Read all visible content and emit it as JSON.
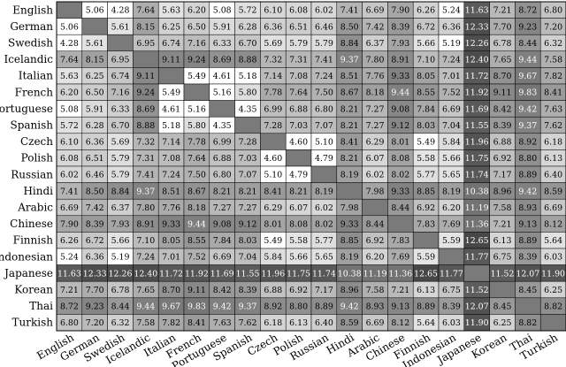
{
  "chart_data": {
    "type": "heatmap",
    "title": "",
    "xlabel": "",
    "ylabel": "",
    "rows": [
      "English",
      "German",
      "Swedish",
      "Icelandic",
      "Italian",
      "French",
      "Portuguese",
      "Spanish",
      "Czech",
      "Polish",
      "Russian",
      "Hindi",
      "Arabic",
      "Chinese",
      "Finnish",
      "Indonesian",
      "Japanese",
      "Korean",
      "Thai",
      "Turkish"
    ],
    "columns": [
      "English",
      "German",
      "Swedish",
      "Icelandic",
      "Italian",
      "French",
      "Portuguese",
      "Spanish",
      "Czech",
      "Polish",
      "Russian",
      "Hindi",
      "Arabic",
      "Chinese",
      "Finnish",
      "Indonesian",
      "Japanese",
      "Korean",
      "Thai",
      "Turkish"
    ],
    "diagonal": "empty",
    "color_scale": "light gray (low) to dark gray (high); white for lowest values",
    "values": [
      [
        null,
        5.06,
        4.28,
        7.64,
        5.63,
        6.2,
        5.08,
        5.72,
        6.1,
        6.08,
        6.02,
        7.41,
        6.69,
        7.9,
        6.26,
        5.24,
        11.63,
        7.21,
        8.72,
        6.8
      ],
      [
        5.06,
        null,
        5.61,
        8.15,
        6.25,
        6.5,
        5.91,
        6.28,
        6.36,
        6.51,
        6.46,
        8.5,
        7.42,
        8.39,
        6.72,
        6.36,
        12.33,
        7.7,
        9.23,
        7.2
      ],
      [
        4.28,
        5.61,
        null,
        6.95,
        6.74,
        7.16,
        6.33,
        6.7,
        5.69,
        5.79,
        5.79,
        8.84,
        6.37,
        7.93,
        5.66,
        5.19,
        12.26,
        6.78,
        8.44,
        6.32
      ],
      [
        7.64,
        8.15,
        6.95,
        null,
        9.11,
        9.24,
        8.69,
        8.88,
        7.32,
        7.31,
        7.41,
        9.37,
        7.8,
        8.91,
        7.1,
        7.24,
        12.4,
        7.65,
        9.44,
        7.58
      ],
      [
        5.63,
        6.25,
        6.74,
        9.11,
        null,
        5.49,
        4.61,
        5.18,
        7.14,
        7.08,
        7.24,
        8.51,
        7.76,
        9.33,
        8.05,
        7.01,
        11.72,
        8.7,
        9.67,
        7.82
      ],
      [
        6.2,
        6.5,
        7.16,
        9.24,
        5.49,
        null,
        5.16,
        5.8,
        7.78,
        7.64,
        7.5,
        8.67,
        8.18,
        9.44,
        8.55,
        7.52,
        11.92,
        9.11,
        9.83,
        8.41
      ],
      [
        5.08,
        5.91,
        6.33,
        8.69,
        4.61,
        5.16,
        null,
        4.35,
        6.99,
        6.88,
        6.8,
        8.21,
        7.27,
        9.08,
        7.84,
        6.69,
        11.69,
        8.42,
        9.42,
        7.63
      ],
      [
        5.72,
        6.28,
        6.7,
        8.88,
        5.18,
        5.8,
        4.35,
        null,
        7.28,
        7.03,
        7.07,
        8.21,
        7.27,
        9.12,
        8.03,
        7.04,
        11.55,
        8.39,
        9.37,
        7.62
      ],
      [
        6.1,
        6.36,
        5.69,
        7.32,
        7.14,
        7.78,
        6.99,
        7.28,
        null,
        4.6,
        5.1,
        8.41,
        6.29,
        8.01,
        5.49,
        5.84,
        11.96,
        6.88,
        8.92,
        6.18
      ],
      [
        6.08,
        6.51,
        5.79,
        7.31,
        7.08,
        7.64,
        6.88,
        7.03,
        4.6,
        null,
        4.79,
        8.21,
        6.07,
        8.08,
        5.58,
        5.66,
        11.75,
        6.92,
        8.8,
        6.13
      ],
      [
        6.02,
        6.46,
        5.79,
        7.41,
        7.24,
        7.5,
        6.8,
        7.07,
        5.1,
        4.79,
        null,
        8.19,
        6.02,
        8.02,
        5.77,
        5.65,
        11.74,
        7.17,
        8.89,
        6.4
      ],
      [
        7.41,
        8.5,
        8.84,
        9.37,
        8.51,
        8.67,
        8.21,
        8.21,
        8.41,
        8.21,
        8.19,
        null,
        7.98,
        9.33,
        8.85,
        8.19,
        10.38,
        8.96,
        9.42,
        8.59
      ],
      [
        6.69,
        7.42,
        6.37,
        7.8,
        7.76,
        8.18,
        7.27,
        7.27,
        6.29,
        6.07,
        6.02,
        7.98,
        null,
        8.44,
        6.92,
        6.2,
        11.19,
        7.58,
        8.93,
        6.69
      ],
      [
        7.9,
        8.39,
        7.93,
        8.91,
        9.33,
        9.44,
        9.08,
        9.12,
        8.01,
        8.08,
        8.02,
        9.33,
        8.44,
        null,
        7.83,
        7.69,
        11.36,
        7.21,
        9.13,
        8.12
      ],
      [
        6.26,
        6.72,
        5.66,
        7.1,
        8.05,
        8.55,
        7.84,
        8.03,
        5.49,
        5.58,
        5.77,
        8.85,
        6.92,
        7.83,
        null,
        5.59,
        12.65,
        6.13,
        8.89,
        5.64
      ],
      [
        5.24,
        6.36,
        5.19,
        7.24,
        7.01,
        7.52,
        6.69,
        7.04,
        5.84,
        5.66,
        5.65,
        8.19,
        6.2,
        7.69,
        5.59,
        null,
        11.77,
        6.75,
        8.39,
        6.03
      ],
      [
        11.63,
        12.33,
        12.26,
        12.4,
        11.72,
        11.92,
        11.69,
        11.55,
        11.96,
        11.75,
        11.74,
        10.38,
        11.19,
        11.36,
        12.65,
        11.77,
        null,
        11.52,
        12.07,
        11.9
      ],
      [
        7.21,
        7.7,
        6.78,
        7.65,
        8.7,
        9.11,
        8.42,
        8.39,
        6.88,
        6.92,
        7.17,
        8.96,
        7.58,
        7.21,
        6.13,
        6.75,
        11.52,
        null,
        8.45,
        6.25
      ],
      [
        8.72,
        9.23,
        8.44,
        9.44,
        9.67,
        9.83,
        9.42,
        9.37,
        8.92,
        8.8,
        8.89,
        9.42,
        8.93,
        9.13,
        8.89,
        8.39,
        12.07,
        8.45,
        null,
        8.82
      ],
      [
        6.8,
        7.2,
        6.32,
        7.58,
        7.82,
        8.41,
        7.63,
        7.62,
        6.18,
        6.13,
        6.4,
        8.59,
        6.69,
        8.12,
        5.64,
        6.03,
        11.9,
        6.25,
        8.82,
        null
      ]
    ]
  }
}
